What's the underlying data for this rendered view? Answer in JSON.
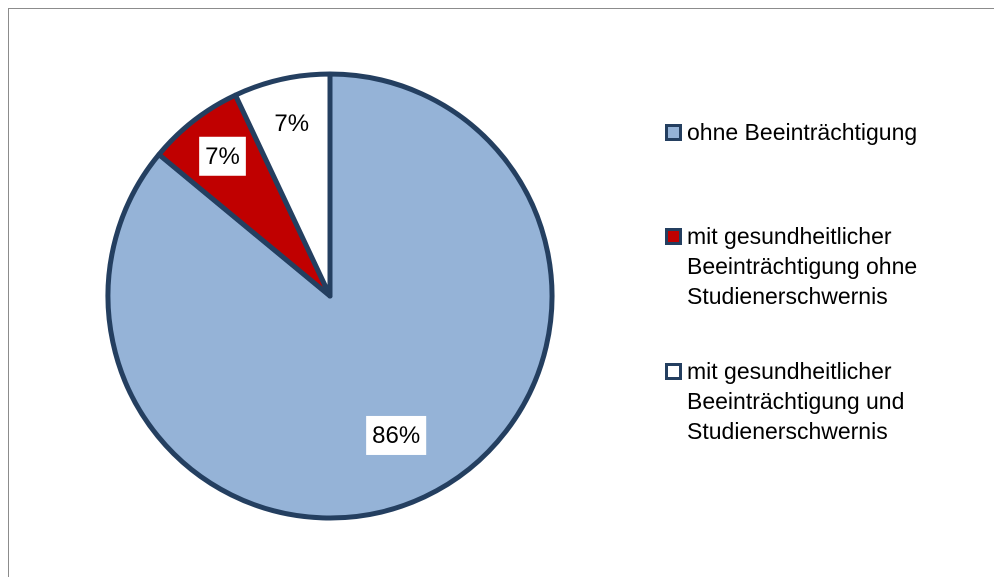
{
  "chart_data": {
    "type": "pie",
    "categories": [
      "ohne Beeinträchtigung",
      "mit gesundheitlicher Beeinträchtigung ohne Studienerschwernis",
      "mit gesundheitlicher Beeinträchtigung und Studienerschwernis"
    ],
    "values": [
      86,
      7,
      7
    ],
    "value_labels": [
      "86%",
      "7%",
      "7%"
    ],
    "colors": [
      "#95b3d7",
      "#c00000",
      "#ffffff"
    ],
    "legend": "right"
  }
}
